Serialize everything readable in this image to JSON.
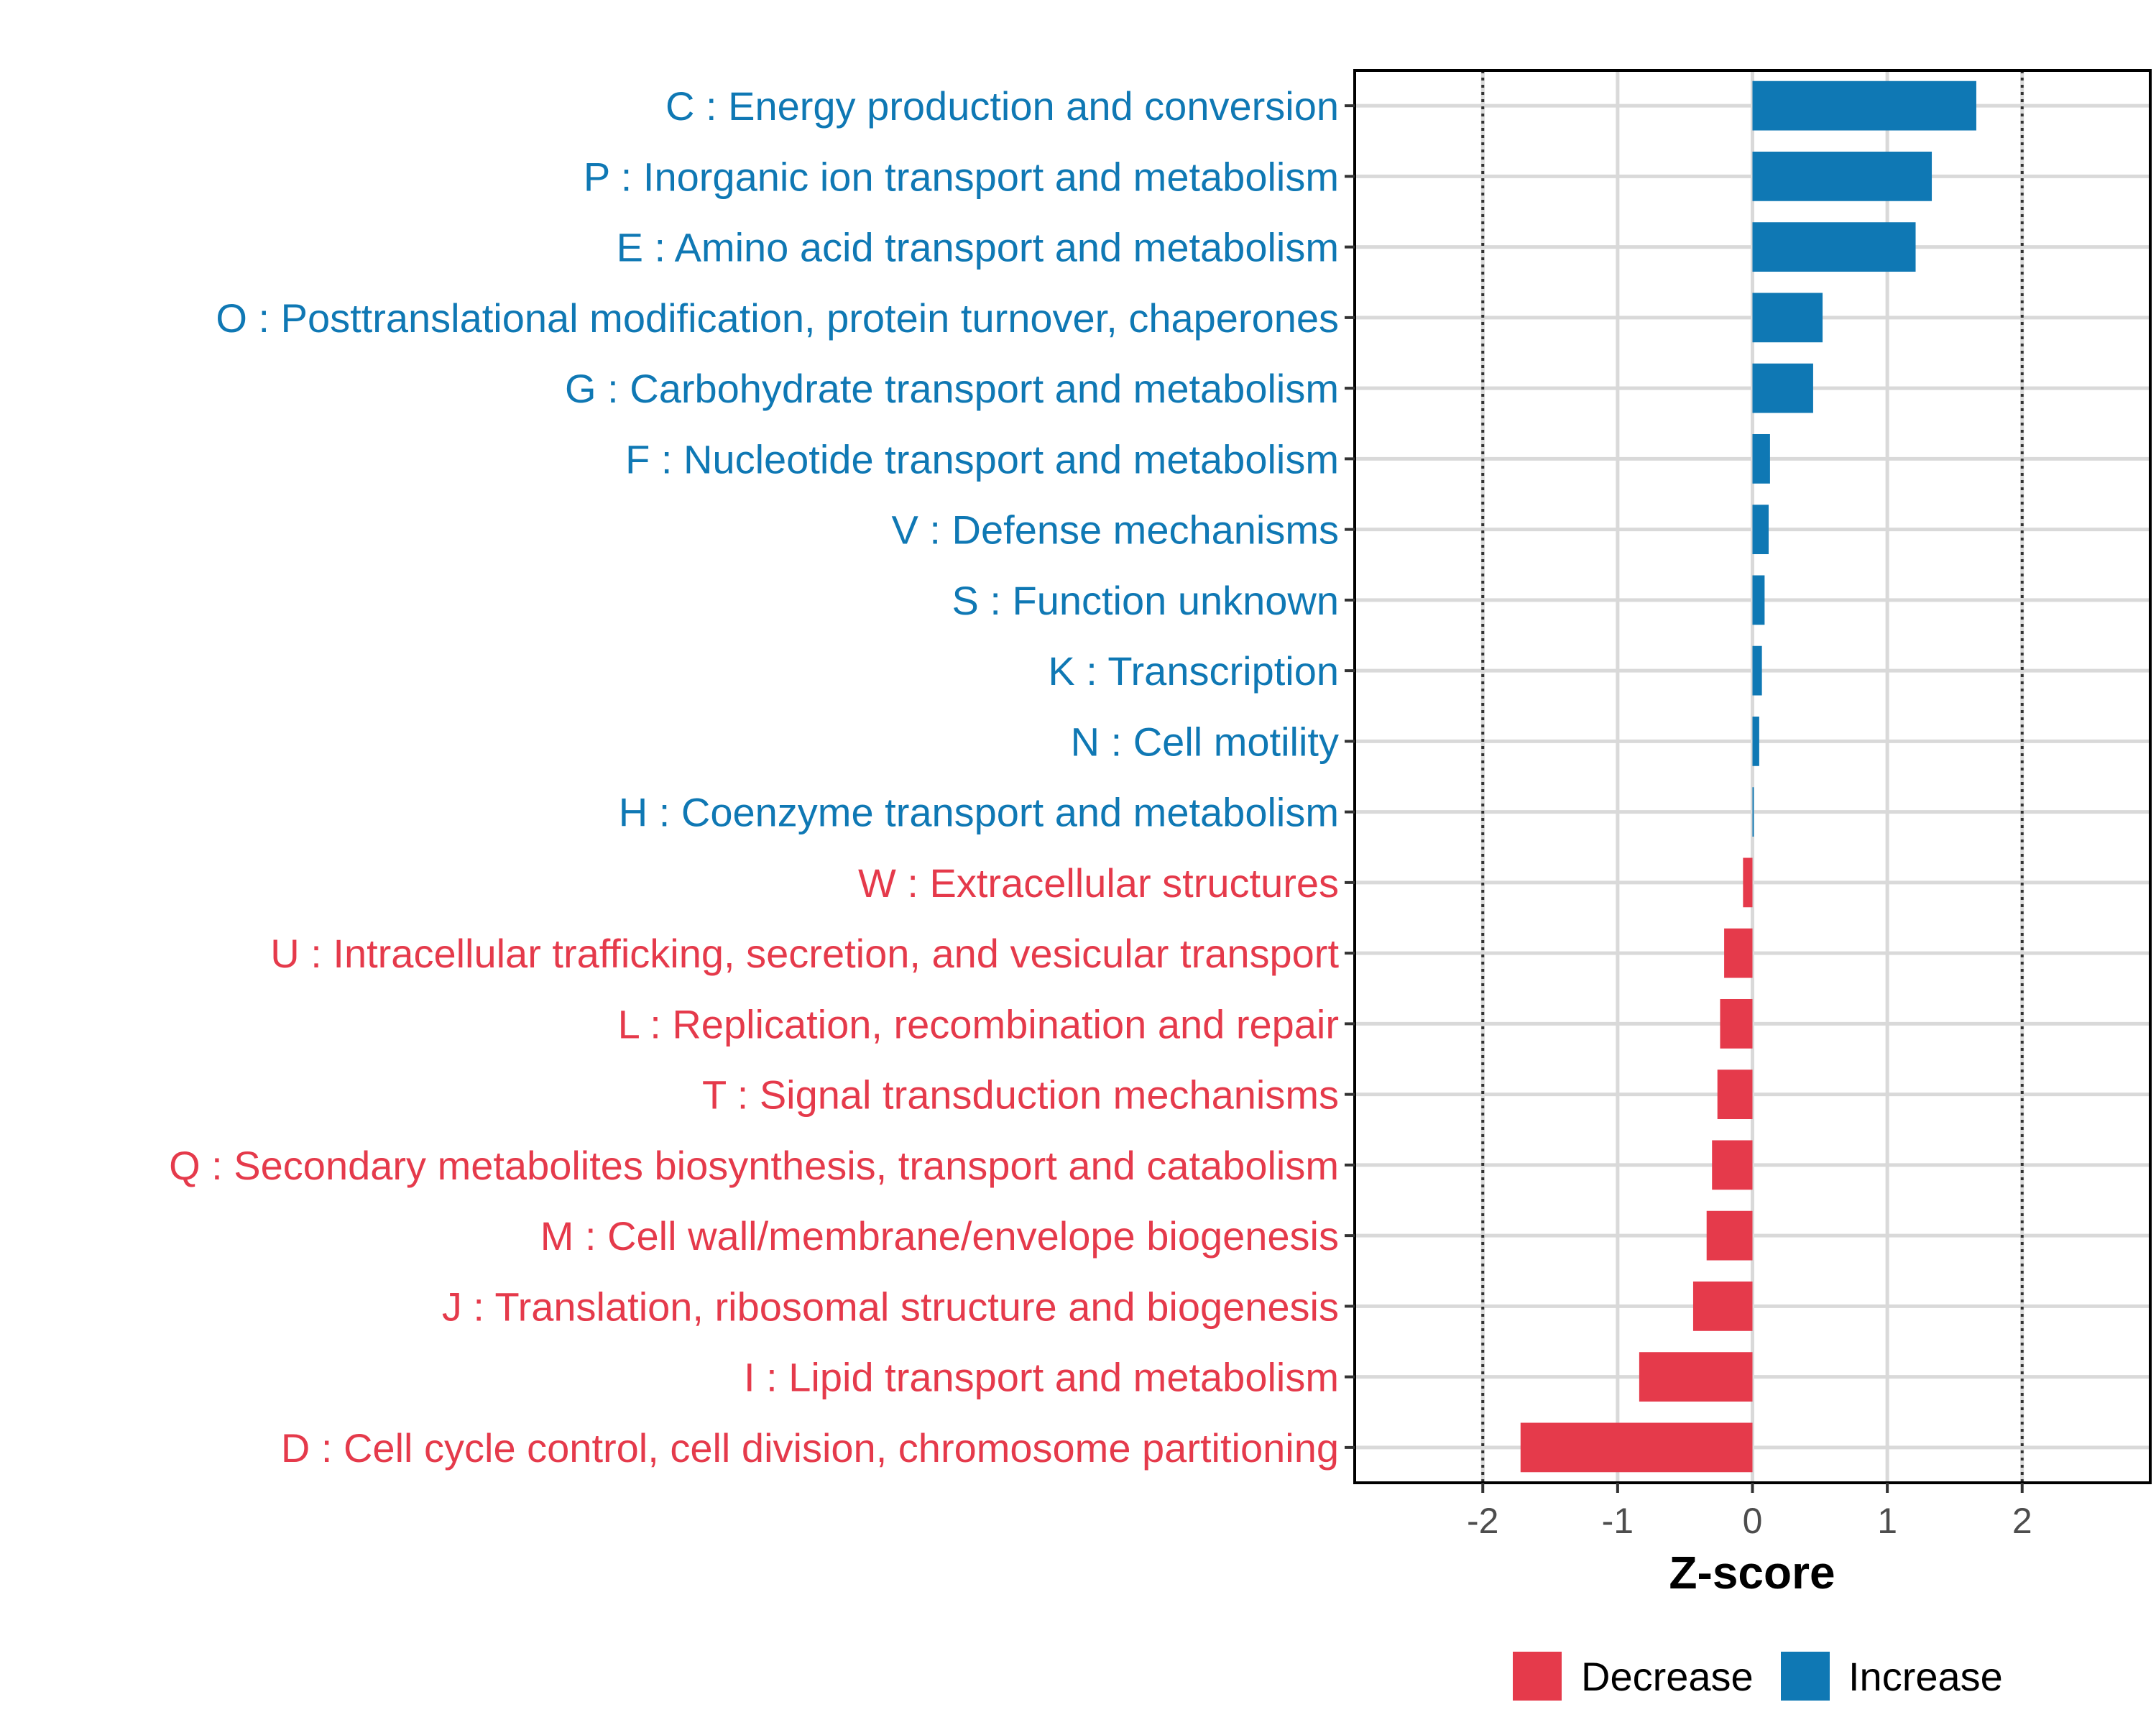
{
  "chart_data": {
    "type": "bar",
    "orientation": "horizontal",
    "xlabel": "Z-score",
    "ylabel": "",
    "xlim": [
      -2.95,
      2.95
    ],
    "x_ticks": [
      -2,
      -1,
      0,
      1,
      2
    ],
    "x_tick_labels": [
      "-2",
      "-1",
      "0",
      "1",
      "2"
    ],
    "reference_lines": [
      -2,
      2
    ],
    "grid": true,
    "legend_position": "bottom",
    "colors": {
      "Decrease": "#e53a4b",
      "Increase": "#0f78b4"
    },
    "legend": [
      {
        "label": "Decrease",
        "color": "#e53a4b"
      },
      {
        "label": "Increase",
        "color": "#0f78b4"
      }
    ],
    "categories": [
      "C : Energy production and conversion",
      "P : Inorganic ion transport and metabolism",
      "E : Amino acid transport and metabolism",
      "O : Posttranslational modification, protein turnover, chaperones",
      "G : Carbohydrate transport and metabolism",
      "F : Nucleotide transport and metabolism",
      "V : Defense mechanisms",
      "S : Function unknown",
      "K : Transcription",
      "N : Cell motility",
      "H : Coenzyme transport and metabolism",
      "W : Extracellular structures",
      "U : Intracellular trafficking, secretion, and vesicular transport",
      "L : Replication, recombination and repair",
      "T : Signal transduction mechanisms",
      "Q : Secondary metabolites biosynthesis, transport and catabolism",
      "M : Cell wall/membrane/envelope biogenesis",
      "J : Translation, ribosomal structure and biogenesis",
      "I : Lipid transport and metabolism",
      "D : Cell cycle control, cell division, chromosome partitioning"
    ],
    "values": [
      1.66,
      1.33,
      1.21,
      0.52,
      0.45,
      0.13,
      0.12,
      0.09,
      0.07,
      0.05,
      0.01,
      -0.07,
      -0.21,
      -0.24,
      -0.26,
      -0.3,
      -0.34,
      -0.44,
      -0.84,
      -1.72
    ],
    "groups": [
      "Increase",
      "Increase",
      "Increase",
      "Increase",
      "Increase",
      "Increase",
      "Increase",
      "Increase",
      "Increase",
      "Increase",
      "Increase",
      "Decrease",
      "Decrease",
      "Decrease",
      "Decrease",
      "Decrease",
      "Decrease",
      "Decrease",
      "Decrease",
      "Decrease"
    ]
  }
}
